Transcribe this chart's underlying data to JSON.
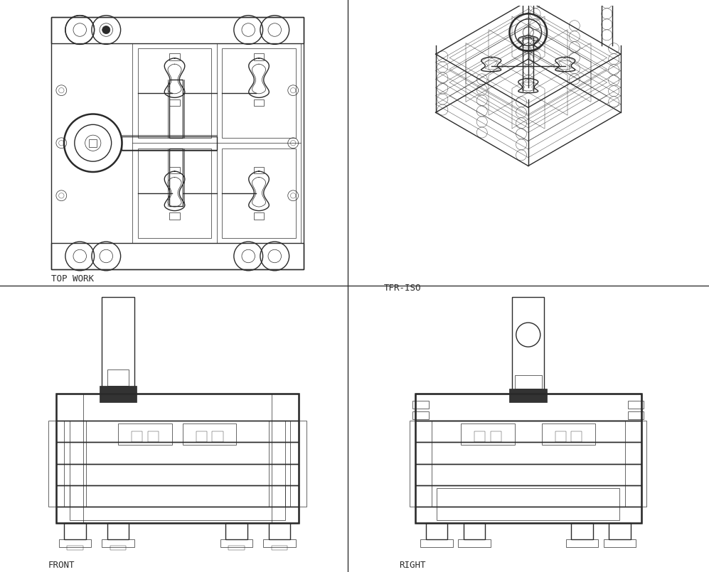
{
  "bg_color": "#ffffff",
  "panel_bg": "#ffffff",
  "line_color": "#2a2a2a",
  "medium_line": "#555555",
  "light_line_color": "#888888",
  "dark_fill": "#333333",
  "gray_fill": "#aaaaaa",
  "divider_color": "#333333",
  "labels": {
    "top_left": "TOP WORK",
    "top_right": "TFR-ISO",
    "bottom_left": "FRONT",
    "bottom_right": "RIGHT"
  },
  "label_fontsize": 9,
  "label_font": "monospace",
  "lw_heavy": 1.8,
  "lw_main": 1.0,
  "lw_thin": 0.5,
  "lw_xtra_thin": 0.3
}
